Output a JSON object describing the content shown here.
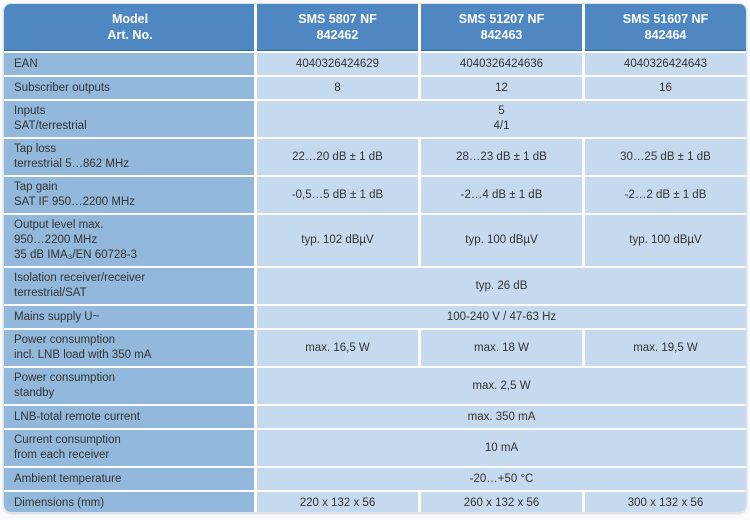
{
  "palette": {
    "header_bg": "#4E87C2",
    "header_text": "#FFFFFF",
    "label_column_bg": "#92B8DC",
    "data_cell_bg": "#C5DAEE",
    "separator": "#FFFFFF",
    "body_text": "#333333"
  },
  "table": {
    "header": {
      "label": "Model\nArt. No.",
      "columns": [
        "SMS 5807 NF\n842462",
        "SMS 51207 NF\n842463",
        "SMS 51607 NF\n842464"
      ]
    },
    "rows": [
      {
        "id": "ean",
        "label": "EAN",
        "type": "cells",
        "values": [
          "4040326424629",
          "4040326424636",
          "4040326424643"
        ]
      },
      {
        "id": "subscriber-outputs",
        "label": "Subscriber outputs",
        "type": "cells",
        "values": [
          "8",
          "12",
          "16"
        ]
      },
      {
        "id": "inputs",
        "label": "Inputs\nSAT/terrestrial",
        "type": "merged",
        "value": "5\n4/1"
      },
      {
        "id": "tap-loss",
        "label": "Tap loss\nterrestrial 5…862 MHz",
        "type": "cells",
        "values": [
          "22…20 dB ± 1 dB",
          "28…23 dB ± 1 dB",
          "30…25 dB ± 1 dB"
        ]
      },
      {
        "id": "tap-gain",
        "label": "Tap gain\nSAT IF 950…2200 MHz",
        "type": "cells",
        "values": [
          "-0,5…5 dB ± 1 dB",
          "-2…4 dB ± 1 dB",
          "-2…2 dB ± 1 dB"
        ]
      },
      {
        "id": "output-level",
        "label": "Output level max.\n950…2200 MHz\n35 dB IMA₃/EN 60728-3",
        "type": "cells",
        "values": [
          "typ. 102 dBµV",
          "typ. 100 dBµV",
          "typ. 100 dBµV"
        ]
      },
      {
        "id": "isolation",
        "label": "Isolation receiver/receiver\nterrestrial/SAT",
        "type": "merged",
        "value": "typ. 26 dB"
      },
      {
        "id": "mains-supply",
        "label": "Mains supply U~",
        "type": "merged",
        "value": "100-240 V / 47-63 Hz"
      },
      {
        "id": "power-consumption-lnb",
        "label": "Power consumption\nincl. LNB load with 350 mA",
        "type": "cells",
        "values": [
          "max. 16,5 W",
          "max. 18 W",
          "max. 19,5 W"
        ]
      },
      {
        "id": "power-consumption-standby",
        "label": "Power consumption\nstandby",
        "type": "merged",
        "value": "max. 2,5 W"
      },
      {
        "id": "lnb-total-remote-current",
        "label": "LNB-total remote current",
        "type": "merged",
        "value": "max. 350 mA"
      },
      {
        "id": "current-consumption-receiver",
        "label": "Current consumption\nfrom each receiver",
        "type": "merged",
        "value": "10 mA"
      },
      {
        "id": "ambient-temperature",
        "label": "Ambient temperature",
        "type": "merged",
        "value": "-20…+50 °C"
      },
      {
        "id": "dimensions",
        "label": "Dimensions (mm)",
        "type": "cells",
        "values": [
          "220 x 132 x 56",
          "260 x 132 x 56",
          "300 x 132 x 56"
        ]
      }
    ]
  }
}
